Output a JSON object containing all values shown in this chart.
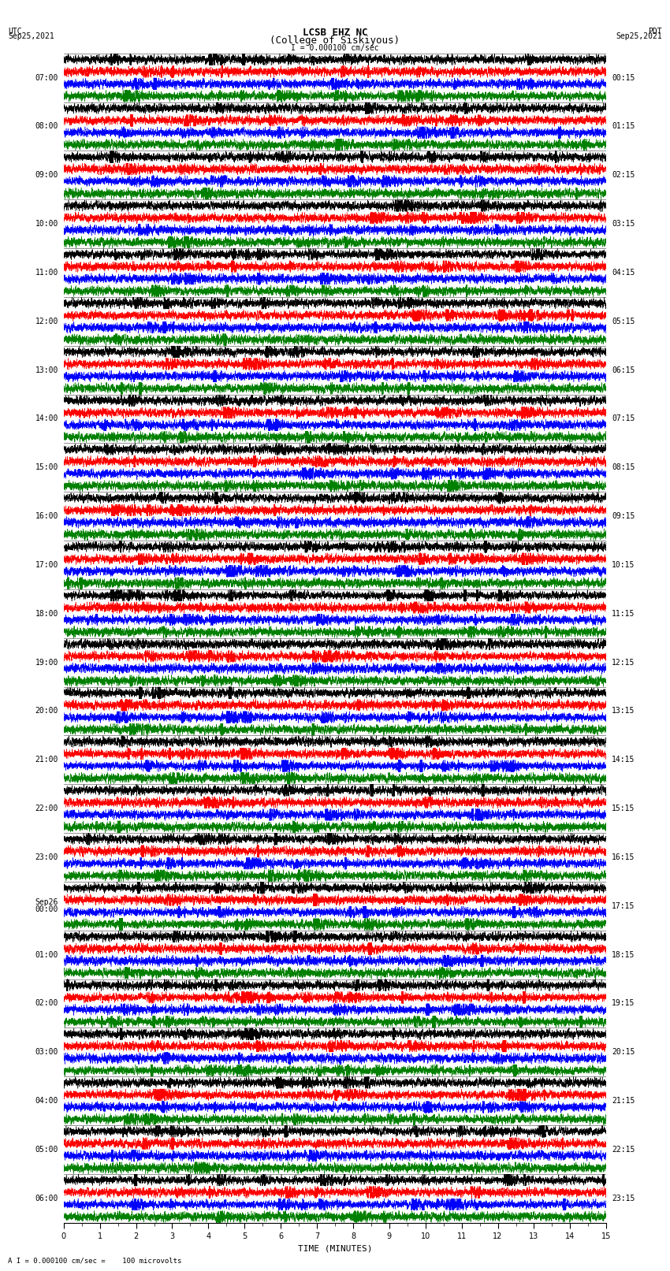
{
  "title_line1": "LCSB EHZ NC",
  "title_line2": "(College of Siskiyous)",
  "scale_label": "I = 0.000100 cm/sec",
  "bottom_label": "A I = 0.000100 cm/sec =    100 microvolts",
  "utc_label": "UTC",
  "utc_date": "Sep25,2021",
  "pdt_label": "PDT",
  "pdt_date": "Sep25,2021",
  "xlabel": "TIME (MINUTES)",
  "left_times_utc": [
    "07:00",
    "08:00",
    "09:00",
    "10:00",
    "11:00",
    "12:00",
    "13:00",
    "14:00",
    "15:00",
    "16:00",
    "17:00",
    "18:00",
    "19:00",
    "20:00",
    "21:00",
    "22:00",
    "23:00",
    "Sep26\n00:00",
    "01:00",
    "02:00",
    "03:00",
    "04:00",
    "05:00",
    "06:00"
  ],
  "right_times_pdt": [
    "00:15",
    "01:15",
    "02:15",
    "03:15",
    "04:15",
    "05:15",
    "06:15",
    "07:15",
    "08:15",
    "09:15",
    "10:15",
    "11:15",
    "12:15",
    "13:15",
    "14:15",
    "15:15",
    "16:15",
    "17:15",
    "18:15",
    "19:15",
    "20:15",
    "21:15",
    "22:15",
    "23:15"
  ],
  "colors": [
    "black",
    "red",
    "blue",
    "green"
  ],
  "bg_color": "white",
  "n_rows": 24,
  "n_traces_per_row": 4,
  "minutes": 15,
  "title_fontsize": 9,
  "tick_fontsize": 7,
  "label_fontsize": 8
}
